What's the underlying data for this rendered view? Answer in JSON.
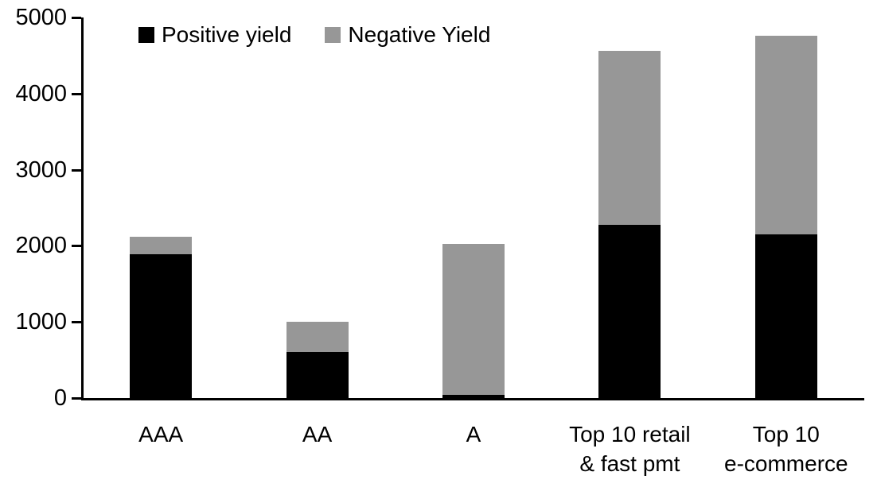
{
  "chart_data": {
    "type": "bar",
    "stacked": true,
    "title": "",
    "xlabel": "",
    "ylabel": "",
    "categories": [
      "AAA",
      "AA",
      "A",
      "Top 10 retail & fast pmt",
      "Top 10 e-commerce"
    ],
    "category_label_lines": [
      [
        "AAA"
      ],
      [
        "AA"
      ],
      [
        "A"
      ],
      [
        "Top 10 retail",
        "& fast pmt"
      ],
      [
        "Top 10",
        "e-commerce"
      ]
    ],
    "series": [
      {
        "name": "Positive yield",
        "color": "#000000",
        "values": [
          1890,
          610,
          45,
          2280,
          2150
        ]
      },
      {
        "name": "Negative Yield",
        "color": "#979797",
        "values": [
          230,
          390,
          1985,
          2280,
          2610
        ]
      }
    ],
    "totals": [
      2120,
      1000,
      2030,
      4560,
      4760
    ],
    "ylim": [
      0,
      5000
    ],
    "yticks": [
      0,
      1000,
      2000,
      3000,
      4000,
      5000
    ],
    "grid": false,
    "legend_position": "top-left-inside",
    "axis_color": "#000000",
    "background_color": "#ffffff"
  },
  "legend": {
    "items": [
      {
        "label": "Positive yield",
        "color": "#000000"
      },
      {
        "label": "Negative Yield",
        "color": "#979797"
      }
    ]
  }
}
